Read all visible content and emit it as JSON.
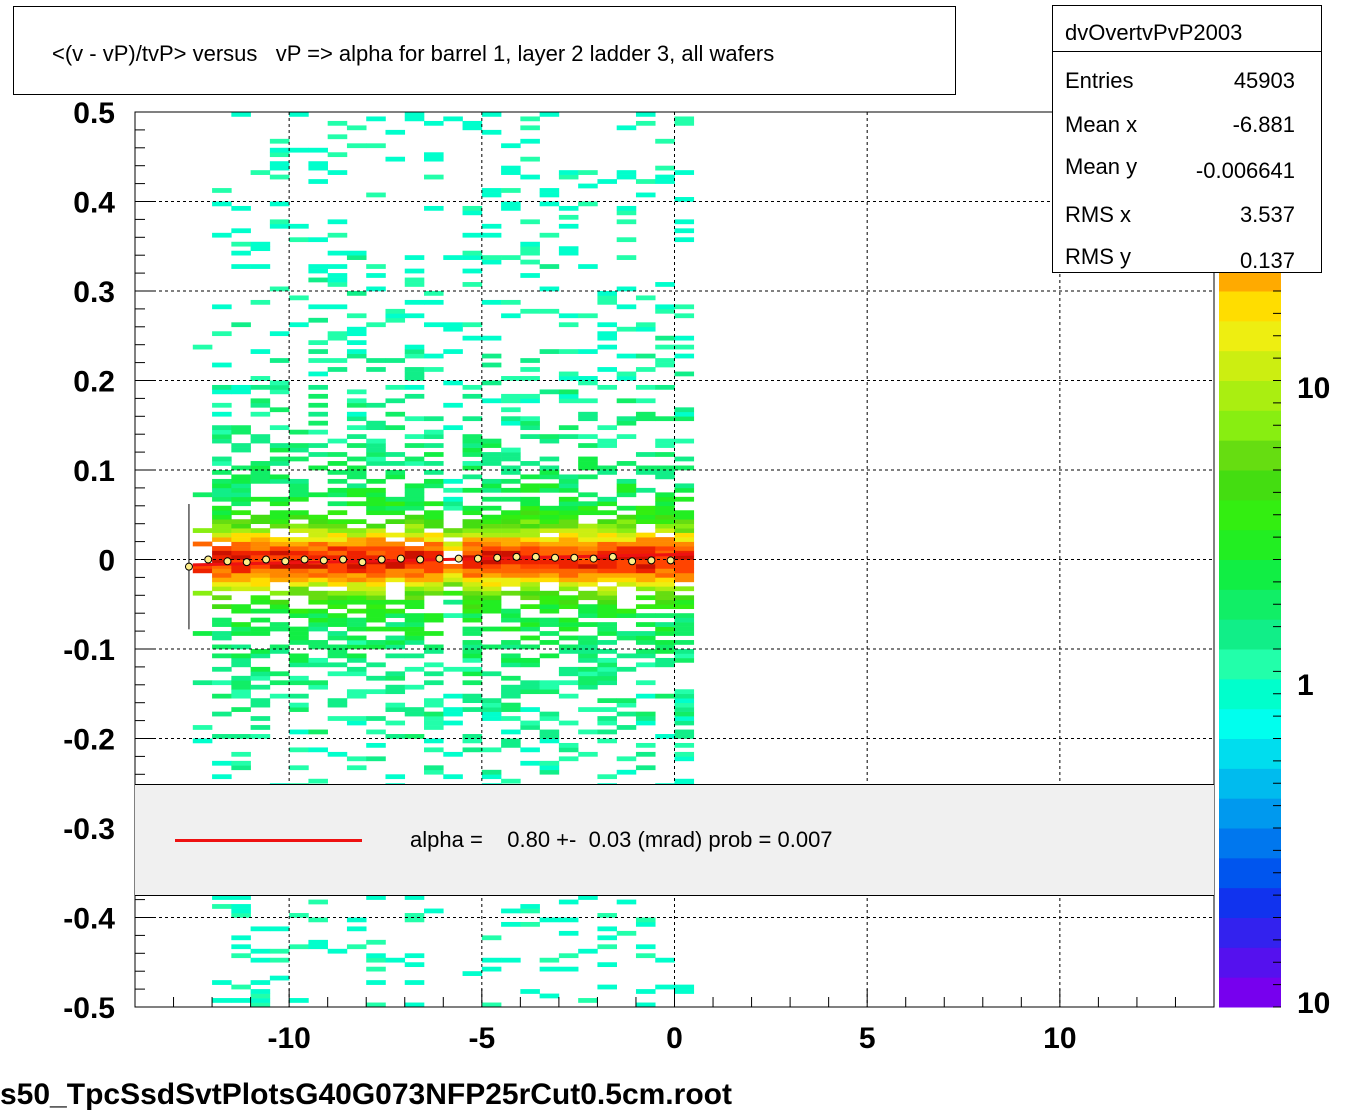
{
  "chart_data": {
    "type": "heatmap",
    "title": "<(v - vP)/tvP> versus   vP => alpha for barrel 1, layer 2 ladder 3, all wafers",
    "xlim": [
      -14,
      14
    ],
    "ylim": [
      -0.5,
      0.5
    ],
    "x_ticks": [
      "-10",
      "-5",
      "0",
      "5",
      "10"
    ],
    "y_ticks": [
      "0.5",
      "0.4",
      "0.3",
      "0.2",
      "0.1",
      "0",
      "-0.1",
      "-0.2",
      "-0.3",
      "-0.4",
      "-0.5"
    ],
    "grid": true,
    "colorbar": {
      "scale": "log",
      "labels": [
        "10",
        "1",
        "10"
      ],
      "colors": [
        "#7700ee",
        "#5511ee",
        "#3322ee",
        "#1133ee",
        "#0055ee",
        "#0077ee",
        "#0099ee",
        "#00bbee",
        "#00ddee",
        "#00ffee",
        "#00ffcc",
        "#22ffaa",
        "#11ee88",
        "#11ee66",
        "#11ee44",
        "#22ee22",
        "#33ee11",
        "#44dd11",
        "#66dd11",
        "#88ee11",
        "#aaee11",
        "#ccee11",
        "#eeee11",
        "#ffdd00",
        "#ffaa00",
        "#ff8800",
        "#ff6600",
        "#ff4400",
        "#ee2200",
        "#cc1100"
      ]
    },
    "profile_points": {
      "x": [
        -12.6,
        -12.1,
        -11.6,
        -11.1,
        -10.6,
        -10.1,
        -9.6,
        -9.1,
        -8.6,
        -8.1,
        -7.6,
        -7.1,
        -6.6,
        -6.1,
        -5.6,
        -5.1,
        -4.6,
        -4.1,
        -3.6,
        -3.1,
        -2.6,
        -2.1,
        -1.6,
        -1.1,
        -0.6,
        -0.1
      ],
      "y": [
        -0.008,
        0.0,
        -0.002,
        -0.003,
        0.0,
        -0.002,
        0.0,
        -0.001,
        0.0,
        -0.003,
        0.0,
        0.001,
        0.0,
        0.001,
        0.001,
        0.001,
        0.002,
        0.003,
        0.003,
        0.002,
        0.002,
        0.001,
        0.003,
        -0.002,
        -0.001,
        -0.001
      ]
    },
    "fit_line": {
      "x": [
        -12.5,
        0.5
      ],
      "y": [
        -0.006,
        0.006
      ]
    },
    "stats": {
      "name": "dvOvertvPvP2003",
      "entries_label": "Entries",
      "entries": "45903",
      "mean_x_label": "Mean x",
      "mean_x": "-6.881",
      "mean_y_label": "Mean y",
      "mean_y": "-0.006641",
      "rms_x_label": "RMS x",
      "rms_x": "3.537",
      "rms_y_label": "RMS y",
      "rms_y": "0.137"
    },
    "legend": {
      "text": "alpha =    0.80 +-  0.03 (mrad) prob = 0.007",
      "color": "#ee1111"
    }
  },
  "footer": "s50_TpcSsdSvtPlotsG40G073NFP25rCut0.5cm.root"
}
